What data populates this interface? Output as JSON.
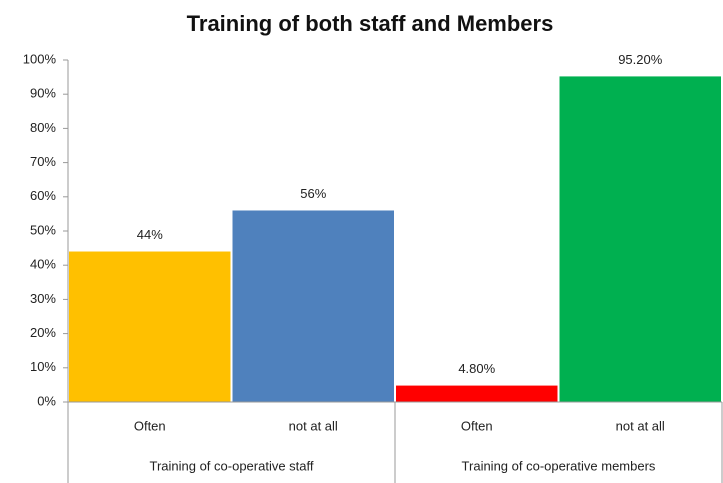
{
  "chart_data": {
    "type": "bar",
    "title": "Training of both staff and Members",
    "categories": [
      "Often",
      "not at all",
      "Often",
      "not at all"
    ],
    "groups": [
      "Training of co-operative staff",
      "Training of co-operative members"
    ],
    "values": [
      44,
      56,
      4.8,
      95.2
    ],
    "value_labels": [
      "44%",
      "56%",
      "4.80%",
      "95.20%"
    ],
    "colors": [
      "#ffc000",
      "#4f81bd",
      "#ff0000",
      "#00b050"
    ],
    "ylim": [
      0,
      100
    ],
    "yticks": [
      {
        "value": 0,
        "label": "0%"
      },
      {
        "value": 10,
        "label": "10%"
      },
      {
        "value": 20,
        "label": "20%"
      },
      {
        "value": 30,
        "label": "30%"
      },
      {
        "value": 40,
        "label": "40%"
      },
      {
        "value": 50,
        "label": "50%"
      },
      {
        "value": 60,
        "label": "60%"
      },
      {
        "value": 70,
        "label": "70%"
      },
      {
        "value": 80,
        "label": "80%"
      },
      {
        "value": 90,
        "label": "90%"
      },
      {
        "value": 100,
        "label": "100%"
      }
    ],
    "grid": false
  }
}
